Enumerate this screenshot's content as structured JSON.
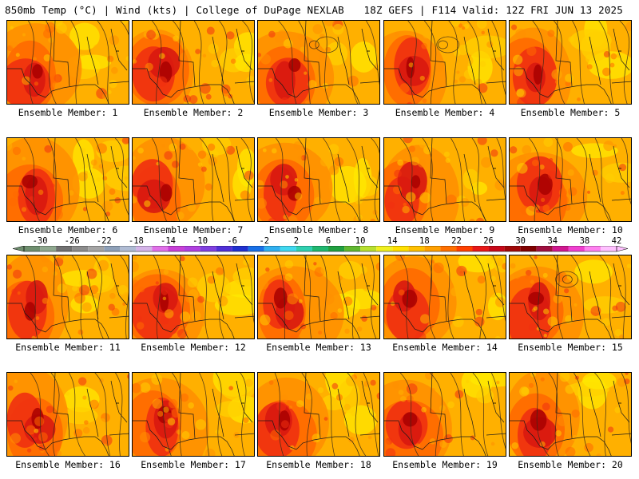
{
  "header": {
    "left": "850mb Temp (°C) | Wind (kts) | College of DuPage NEXLAB",
    "right": "18Z GEFS | F114 Valid: 12Z FRI JUN 13 2025"
  },
  "members": [
    "Ensemble Member: 1",
    "Ensemble Member: 2",
    "Ensemble Member: 3",
    "Ensemble Member: 4",
    "Ensemble Member: 5",
    "Ensemble Member: 6",
    "Ensemble Member: 7",
    "Ensemble Member: 8",
    "Ensemble Member: 9",
    "Ensemble Member: 10",
    "Ensemble Member: 11",
    "Ensemble Member: 12",
    "Ensemble Member: 13",
    "Ensemble Member: 14",
    "Ensemble Member: 15",
    "Ensemble Member: 16",
    "Ensemble Member: 17",
    "Ensemble Member: 18",
    "Ensemble Member: 19",
    "Ensemble Member: 20"
  ],
  "colorbar": {
    "tick_labels": [
      "-30",
      "-26",
      "-22",
      "-18",
      "-14",
      "-10",
      "-6",
      "-2",
      "2",
      "6",
      "10",
      "14",
      "18",
      "22",
      "26",
      "30",
      "34",
      "38",
      "42"
    ],
    "values": [
      -30,
      -26,
      -22,
      -18,
      -14,
      -10,
      -6,
      -2,
      2,
      6,
      10,
      14,
      18,
      22,
      26,
      30,
      34,
      38,
      42
    ],
    "bins": [
      {
        "lo": -32,
        "color": "#6f8f6f"
      },
      {
        "lo": -30,
        "color": "#8fa88f"
      },
      {
        "lo": -28,
        "color": "#707070"
      },
      {
        "lo": -26,
        "color": "#8c8c8c"
      },
      {
        "lo": -24,
        "color": "#a4a4a4"
      },
      {
        "lo": -22,
        "color": "#8ea0b8"
      },
      {
        "lo": -20,
        "color": "#b0bcd4"
      },
      {
        "lo": -18,
        "color": "#d4b4e8"
      },
      {
        "lo": -16,
        "color": "#e070e8"
      },
      {
        "lo": -14,
        "color": "#c840d8"
      },
      {
        "lo": -12,
        "color": "#b040e0"
      },
      {
        "lo": -10,
        "color": "#8040e0"
      },
      {
        "lo": -8,
        "color": "#5030d8"
      },
      {
        "lo": -6,
        "color": "#2030d0"
      },
      {
        "lo": -4,
        "color": "#1870e8"
      },
      {
        "lo": -2,
        "color": "#30b0f0"
      },
      {
        "lo": 0,
        "color": "#40d8f0"
      },
      {
        "lo": 2,
        "color": "#30d0b0"
      },
      {
        "lo": 4,
        "color": "#20b870"
      },
      {
        "lo": 6,
        "color": "#20a040"
      },
      {
        "lo": 8,
        "color": "#60b830"
      },
      {
        "lo": 10,
        "color": "#b8e030"
      },
      {
        "lo": 12,
        "color": "#f0f020"
      },
      {
        "lo": 14,
        "color": "#ffe000"
      },
      {
        "lo": 16,
        "color": "#ffc000"
      },
      {
        "lo": 18,
        "color": "#ffa000"
      },
      {
        "lo": 20,
        "color": "#ff7000"
      },
      {
        "lo": 22,
        "color": "#ff4000"
      },
      {
        "lo": 24,
        "color": "#e81818"
      },
      {
        "lo": 26,
        "color": "#c80818"
      },
      {
        "lo": 28,
        "color": "#a00808"
      },
      {
        "lo": 30,
        "color": "#800000"
      },
      {
        "lo": 32,
        "color": "#a01040"
      },
      {
        "lo": 34,
        "color": "#d01890"
      },
      {
        "lo": 36,
        "color": "#f040d0"
      },
      {
        "lo": 38,
        "color": "#ff80f0"
      },
      {
        "lo": 40,
        "color": "#ffc0ff"
      }
    ]
  },
  "colors": {
    "hot_center": "#a80000",
    "very_hot": "#d81810",
    "hot": "#f03010",
    "warm": "#ff6a00",
    "mild": "#ff9000",
    "base": "#ffb000",
    "cool": "#ffd000",
    "cooler": "#ffe800"
  }
}
